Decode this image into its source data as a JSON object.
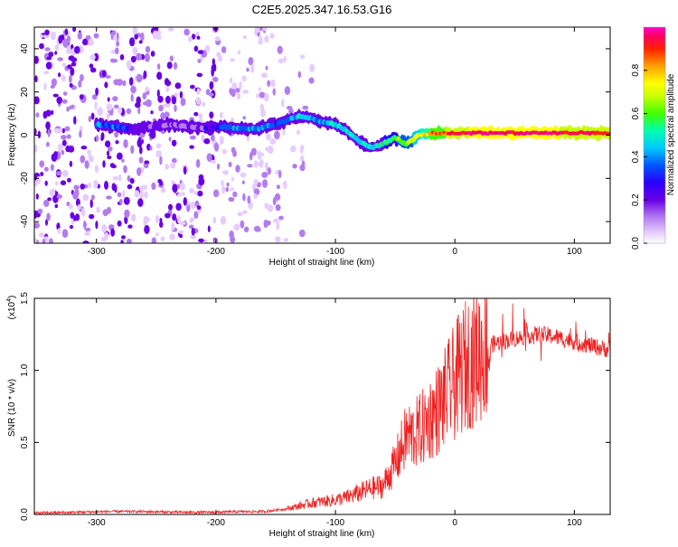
{
  "title": "C2E5.2025.347.16.53.G16",
  "chart_data": [
    {
      "type": "heatmap",
      "xlabel": "Height of straight line (km)",
      "ylabel": "Frequency (Hz)",
      "xlim": [
        -352,
        130
      ],
      "ylim": [
        -50,
        50
      ],
      "xticks": [
        -300,
        -200,
        -100,
        0,
        100
      ],
      "yticks": [
        -40,
        -20,
        0,
        20,
        40
      ],
      "colorbar_label": "Normalized spectral amplitude",
      "colorbar_range": [
        0,
        1
      ],
      "colorbar_ticks": [
        "0.0",
        "0.2",
        "0.4",
        "0.6",
        "0.8"
      ],
      "colormap": [
        "#ffffff",
        "#e6ccff",
        "#b37cf0",
        "#6a00e6",
        "#2a00ff",
        "#0055ff",
        "#00c8ff",
        "#00ffb0",
        "#40ff00",
        "#c8ff00",
        "#ffff00",
        "#ffa000",
        "#ff2000",
        "#ff0064",
        "#ff00c8"
      ],
      "ridge": {
        "x": [
          -300,
          -285,
          -270,
          -255,
          -240,
          -225,
          -210,
          -195,
          -180,
          -165,
          -150,
          -140,
          -130,
          -120,
          -110,
          -100,
          -90,
          -80,
          -70,
          -60,
          -50,
          -45,
          -40,
          -30,
          -20,
          -10,
          0,
          20,
          50,
          80,
          100,
          130
        ],
        "freq": [
          5,
          4,
          3,
          4,
          5,
          4,
          3,
          4,
          3,
          3,
          5,
          7,
          9,
          8,
          6,
          5,
          2,
          -3,
          -6,
          -4,
          -1,
          -3,
          -4,
          0,
          1,
          1,
          1,
          1,
          1,
          1,
          1,
          1
        ],
        "amplitude": [
          0.35,
          0.35,
          0.25,
          0.2,
          0.2,
          0.15,
          0.2,
          0.35,
          0.4,
          0.4,
          0.35,
          0.4,
          0.45,
          0.4,
          0.4,
          0.45,
          0.45,
          0.45,
          0.45,
          0.5,
          0.55,
          0.6,
          0.6,
          0.7,
          0.8,
          0.85,
          0.9,
          0.95,
          0.95,
          0.95,
          0.9,
          0.9
        ]
      }
    },
    {
      "type": "line",
      "xlabel": "Height of straight line (km)",
      "ylabel": "SNR (10 * v/v)",
      "scale_label": "(x10",
      "scale_exp": "4",
      "scale_close": ")",
      "xlim": [
        -352,
        130
      ],
      "ylim": [
        0,
        1.5
      ],
      "xticks": [
        -300,
        -200,
        -100,
        0,
        100
      ],
      "yticks": [
        0.0,
        0.5,
        1.0,
        1.5
      ],
      "ytick_labels": [
        "0.0",
        "0.5",
        "1.0",
        "1.5"
      ],
      "color": "#ee2222",
      "x": [
        -352,
        -320,
        -290,
        -260,
        -230,
        -200,
        -180,
        -160,
        -150,
        -140,
        -130,
        -120,
        -110,
        -100,
        -90,
        -80,
        -70,
        -60,
        -55,
        -50,
        -45,
        -40,
        -35,
        -30,
        -25,
        -20,
        -15,
        -10,
        -5,
        0,
        10,
        20,
        30,
        40,
        50,
        60,
        70,
        80,
        90,
        100,
        110,
        120,
        130
      ],
      "y": [
        0.01,
        0.015,
        0.02,
        0.02,
        0.015,
        0.015,
        0.02,
        0.02,
        0.03,
        0.04,
        0.06,
        0.08,
        0.09,
        0.1,
        0.12,
        0.15,
        0.18,
        0.2,
        0.28,
        0.35,
        0.45,
        0.55,
        0.55,
        0.58,
        0.62,
        0.68,
        0.72,
        0.78,
        0.85,
        0.92,
        1.05,
        1.12,
        1.18,
        1.2,
        1.22,
        1.24,
        1.25,
        1.24,
        1.22,
        1.2,
        1.18,
        1.16,
        1.14
      ]
    }
  ]
}
